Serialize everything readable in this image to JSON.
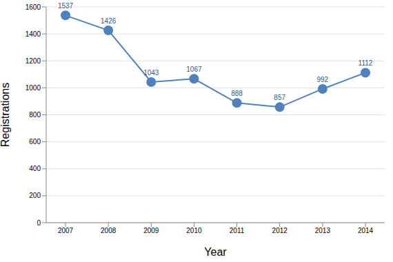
{
  "chart_data": {
    "type": "line",
    "x_label": "Year",
    "y_label": "Registrations",
    "categories": [
      "2007",
      "2008",
      "2009",
      "2010",
      "2011",
      "2012",
      "2013",
      "2014"
    ],
    "values": [
      1537,
      1426,
      1043,
      1067,
      888,
      857,
      992,
      1112
    ],
    "color": "#4f81bd",
    "marker": "circle",
    "ylim": [
      0,
      1600
    ],
    "yticks": [
      0,
      200,
      400,
      600,
      800,
      1000,
      1200,
      1400,
      1600
    ],
    "grid": true,
    "data_labels": true
  }
}
